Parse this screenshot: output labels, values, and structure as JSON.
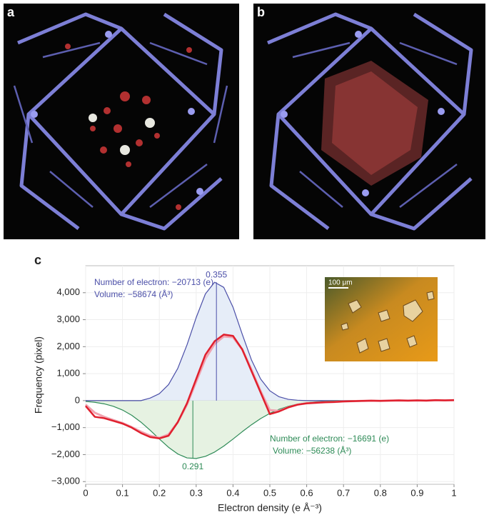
{
  "panels": {
    "a": "a",
    "b": "b",
    "c": "c"
  },
  "chart_data": {
    "type": "line",
    "x_label": "Electron density (e Å⁻³)",
    "y_label": "Frequency (pixel)",
    "xlim": [
      0,
      1
    ],
    "ylim": [
      -3100,
      5000
    ],
    "xticks": [
      0,
      0.1,
      0.2,
      0.3,
      0.4,
      0.5,
      0.6,
      0.7,
      0.8,
      0.9,
      1
    ],
    "yticks": [
      {
        "value": -3000,
        "label": "−3,000"
      },
      {
        "value": -2000,
        "label": "−2,000"
      },
      {
        "value": -1000,
        "label": "−1,000"
      },
      0,
      {
        "value": 1000,
        "label": "1,000"
      },
      {
        "value": 2000,
        "label": "2,000"
      },
      {
        "value": 3000,
        "label": "3,000"
      },
      {
        "value": 4000,
        "label": "4,000"
      }
    ],
    "grid": true,
    "x": [
      0,
      0.025,
      0.05,
      0.075,
      0.1,
      0.125,
      0.15,
      0.175,
      0.2,
      0.225,
      0.25,
      0.275,
      0.3,
      0.325,
      0.35,
      0.375,
      0.4,
      0.425,
      0.45,
      0.475,
      0.5,
      0.525,
      0.55,
      0.575,
      0.6,
      0.625,
      0.65,
      0.675,
      0.7,
      0.725,
      0.75,
      0.775,
      0.8,
      0.825,
      0.85,
      0.875,
      0.9,
      0.925,
      0.95,
      0.975,
      1
    ],
    "series": [
      {
        "color": "#4b4fa8",
        "fill": "#e6edf8",
        "values": [
          0,
          0,
          0,
          0,
          0,
          0,
          0,
          95,
          257,
          595,
          1193,
          2064,
          3077,
          3955,
          4387,
          4197,
          3462,
          2464,
          1513,
          800,
          364,
          144,
          49,
          15,
          0,
          0,
          0,
          0,
          0,
          0,
          0,
          0,
          0,
          0,
          0,
          0,
          0,
          0,
          0,
          0,
          0
        ]
      },
      {
        "color": "#2e8b57",
        "fill": "#e6f2e2",
        "values": [
          -31,
          -62,
          -118,
          -209,
          -348,
          -542,
          -796,
          -1097,
          -1421,
          -1729,
          -1976,
          -2122,
          -2144,
          -2066,
          -1907,
          -1683,
          -1424,
          -1152,
          -895,
          -664,
          -472,
          -321,
          -209,
          -129,
          -78,
          -45,
          -24,
          -12,
          -6,
          0,
          0,
          0,
          0,
          0,
          0,
          0,
          0,
          0,
          0,
          0,
          0
        ]
      },
      {
        "color": "#f0a3b0",
        "values": [
          -150,
          -450,
          -600,
          -720,
          -830,
          -980,
          -1150,
          -1300,
          -1380,
          -1250,
          -800,
          -150,
          700,
          1550,
          2100,
          2380,
          2350,
          1900,
          1150,
          350,
          -350,
          -380,
          -250,
          -150,
          -100,
          -80,
          -60,
          -50,
          -30,
          -20,
          -10,
          -5,
          -5,
          0,
          5,
          0,
          5,
          5,
          10,
          10,
          15
        ]
      },
      {
        "color": "#e0202e",
        "values": [
          -200,
          -600,
          -650,
          -750,
          -850,
          -1000,
          -1200,
          -1350,
          -1400,
          -1300,
          -800,
          -100,
          800,
          1700,
          2200,
          2450,
          2400,
          1900,
          1100,
          300,
          -500,
          -400,
          -250,
          -150,
          -100,
          -80,
          -60,
          -50,
          -30,
          -20,
          -10,
          0,
          -10,
          0,
          10,
          0,
          10,
          0,
          20,
          10,
          20
        ]
      }
    ],
    "peaks": [
      {
        "x": 0.355,
        "series": 0
      },
      {
        "x": 0.291,
        "series": 1
      }
    ],
    "notes": {
      "blue": [
        "Number of electron: −20713 (e)",
        "Volume: −58674 (Å³)"
      ],
      "green": [
        "Number of electron: −16691 (e)",
        "Volume: −56238 (Å³)"
      ]
    },
    "inset_scale": "100 μm"
  }
}
